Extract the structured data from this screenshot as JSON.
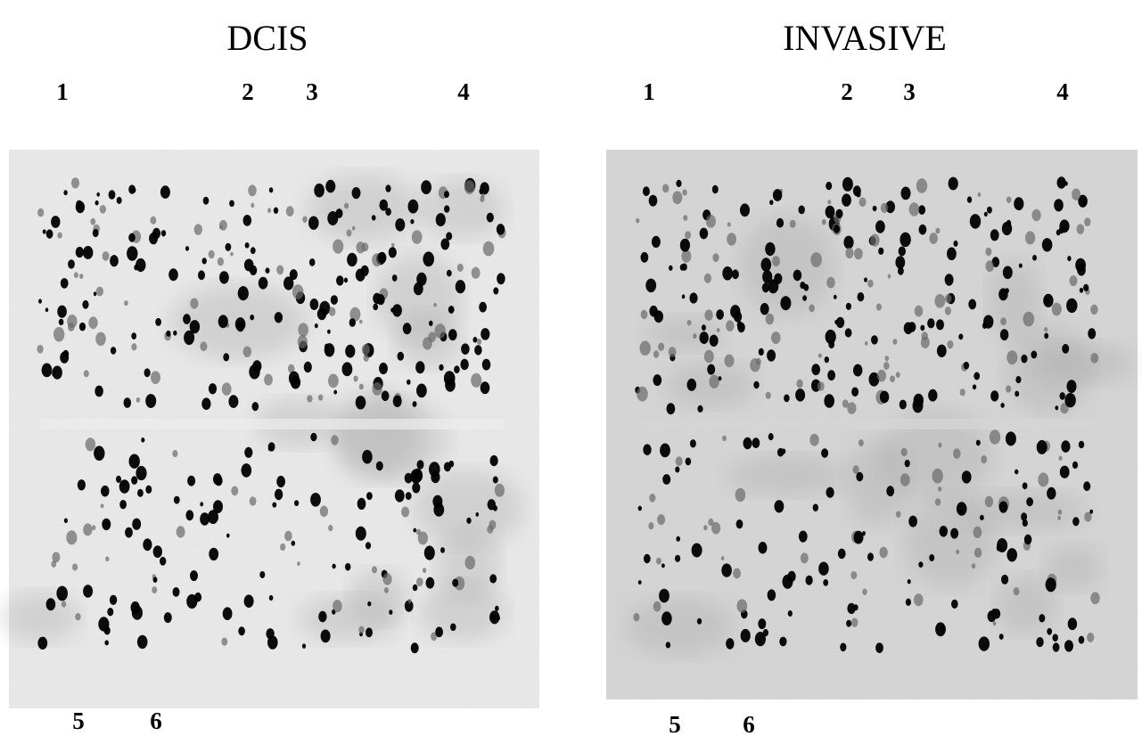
{
  "panels": [
    {
      "title": "DCIS",
      "labels": [
        "1",
        "2",
        "3",
        "4",
        "5",
        "6"
      ]
    },
    {
      "title": "INVASIVE",
      "labels": [
        "1",
        "2",
        "3",
        "4",
        "5",
        "6"
      ]
    }
  ]
}
